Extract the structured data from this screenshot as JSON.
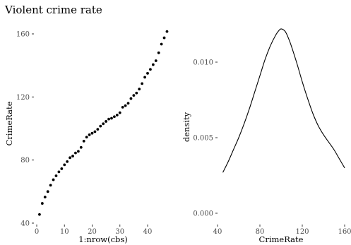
{
  "title": "Violent crime rate",
  "chart_data": [
    {
      "type": "scatter",
      "xlabel": "1:nrow(cbs)",
      "ylabel": "CrimeRate",
      "xlim": [
        0,
        47
      ],
      "ylim": [
        40,
        160
      ],
      "xticks": [
        "0",
        "10",
        "20",
        "30",
        "40"
      ],
      "yticks": [
        "40",
        "80",
        "120",
        "160"
      ],
      "x": [
        1,
        2,
        3,
        4,
        5,
        6,
        7,
        8,
        9,
        10,
        11,
        12,
        13,
        14,
        15,
        16,
        17,
        18,
        19,
        20,
        21,
        22,
        23,
        24,
        25,
        26,
        27,
        28,
        29,
        30,
        31,
        32,
        33,
        34,
        35,
        36,
        37,
        38,
        39,
        40,
        41,
        42,
        43,
        44,
        45,
        46,
        47
      ],
      "y": [
        45.5,
        52.5,
        56.5,
        60,
        64,
        67.5,
        70,
        72.5,
        74.5,
        77,
        79,
        81.5,
        82.5,
        84.5,
        85.5,
        88,
        92,
        94.5,
        96,
        97,
        98,
        99.5,
        101.5,
        103,
        104.5,
        106,
        106.5,
        107.5,
        108.5,
        110,
        113.5,
        114.5,
        116,
        119,
        121,
        122.5,
        125,
        128.5,
        132.5,
        135,
        137.5,
        140.5,
        143,
        148,
        153.5,
        157.5,
        161.5
      ]
    },
    {
      "type": "line",
      "xlabel": "CrimeRate",
      "ylabel": "density",
      "xlim": [
        40,
        160
      ],
      "ylim": [
        0,
        0.0125
      ],
      "xticks": [
        "40",
        "80",
        "120",
        "160"
      ],
      "yticks": [
        "0.000",
        "0.005",
        "0.010"
      ],
      "x": [
        45,
        50,
        55,
        60,
        65,
        70,
        75,
        80,
        85,
        90,
        95,
        98,
        100,
        103,
        105,
        108,
        110,
        115,
        120,
        125,
        130,
        135,
        140,
        145,
        150,
        155,
        160
      ],
      "y": [
        0.0027,
        0.0034,
        0.0042,
        0.005,
        0.0059,
        0.0069,
        0.008,
        0.0091,
        0.0102,
        0.0111,
        0.0118,
        0.0121,
        0.0122,
        0.0121,
        0.0119,
        0.0114,
        0.011,
        0.0099,
        0.0087,
        0.0076,
        0.0066,
        0.0058,
        0.0052,
        0.0047,
        0.0042,
        0.0036,
        0.003
      ]
    }
  ]
}
